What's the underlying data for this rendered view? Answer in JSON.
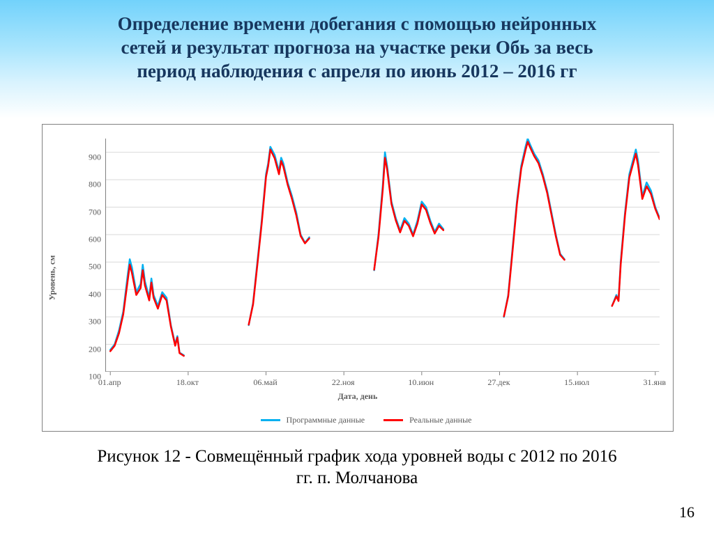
{
  "title_lines": [
    "Определение времени добегания с помощью нейронных",
    "сетей и результат прогноза на участке реки Обь за весь",
    "период наблюдения с  апреля по июнь 2012 – 2016 гг"
  ],
  "caption_lines": [
    "Рисунок 12 - Совмещённый график хода уровней воды с 2012 по 2016",
    "гг. п. Молчанова"
  ],
  "page_number": "16",
  "chart": {
    "type": "line",
    "y_axis": {
      "title": "Уровень, см",
      "min": 100,
      "max": 950,
      "ticks": [
        100,
        200,
        300,
        400,
        500,
        600,
        700,
        800,
        900
      ],
      "grid_color": "#d9d9d9",
      "label_color": "#595959",
      "label_fontsize": 12
    },
    "x_axis": {
      "title": "Дата, день",
      "min": 0,
      "max": 128,
      "ticks": [
        {
          "pos": 1,
          "label": "01.апр"
        },
        {
          "pos": 19,
          "label": "18.окт"
        },
        {
          "pos": 37,
          "label": "06.май"
        },
        {
          "pos": 55,
          "label": "22.ноя"
        },
        {
          "pos": 73,
          "label": "10.июн"
        },
        {
          "pos": 91,
          "label": "27.дек"
        },
        {
          "pos": 109,
          "label": "15.июл"
        },
        {
          "pos": 127,
          "label": "31.янв"
        }
      ],
      "tick_len": 5,
      "label_color": "#595959",
      "label_fontsize": 12
    },
    "legend": {
      "items": [
        {
          "label": "Программные данные",
          "color": "#00b0f0"
        },
        {
          "label": "Реальные данные",
          "color": "#ff0000"
        }
      ]
    },
    "series": [
      {
        "name": "program",
        "color": "#00b0f0",
        "width": 2.5,
        "segments": [
          [
            [
              1,
              180
            ],
            [
              2,
              200
            ],
            [
              3,
              250
            ],
            [
              4,
              320
            ],
            [
              5,
              450
            ],
            [
              5.5,
              510
            ],
            [
              6,
              480
            ],
            [
              7,
              390
            ],
            [
              8,
              420
            ],
            [
              8.5,
              490
            ],
            [
              9,
              430
            ],
            [
              10,
              370
            ],
            [
              10.5,
              440
            ],
            [
              11,
              380
            ],
            [
              12,
              340
            ],
            [
              13,
              390
            ],
            [
              14,
              370
            ],
            [
              15,
              270
            ],
            [
              16,
              200
            ],
            [
              16.5,
              230
            ],
            [
              17,
              170
            ],
            [
              18,
              160
            ]
          ],
          [
            [
              33,
              270
            ],
            [
              34,
              350
            ],
            [
              35,
              500
            ],
            [
              36,
              650
            ],
            [
              37,
              820
            ],
            [
              37.5,
              860
            ],
            [
              38,
              920
            ],
            [
              39,
              890
            ],
            [
              40,
              830
            ],
            [
              40.5,
              880
            ],
            [
              41,
              860
            ],
            [
              42,
              790
            ],
            [
              43,
              740
            ],
            [
              44,
              680
            ],
            [
              45,
              600
            ],
            [
              46,
              570
            ],
            [
              47,
              590
            ]
          ],
          [
            [
              62,
              470
            ],
            [
              63,
              600
            ],
            [
              64,
              780
            ],
            [
              64.5,
              900
            ],
            [
              65,
              850
            ],
            [
              66,
              720
            ],
            [
              67,
              660
            ],
            [
              68,
              615
            ],
            [
              69,
              660
            ],
            [
              70,
              640
            ],
            [
              71,
              600
            ],
            [
              72,
              650
            ],
            [
              73,
              720
            ],
            [
              74,
              700
            ],
            [
              75,
              650
            ],
            [
              76,
              610
            ],
            [
              77,
              640
            ],
            [
              78,
              620
            ]
          ],
          [
            [
              92,
              300
            ],
            [
              93,
              380
            ],
            [
              94,
              550
            ],
            [
              95,
              720
            ],
            [
              96,
              850
            ],
            [
              97,
              920
            ],
            [
              97.5,
              950
            ],
            [
              98,
              930
            ],
            [
              99,
              895
            ],
            [
              100,
              870
            ],
            [
              101,
              820
            ],
            [
              102,
              760
            ],
            [
              103,
              680
            ],
            [
              104,
              600
            ],
            [
              105,
              530
            ],
            [
              106,
              510
            ]
          ],
          [
            [
              117,
              340
            ],
            [
              118,
              380
            ],
            [
              118.5,
              360
            ],
            [
              119,
              500
            ],
            [
              120,
              680
            ],
            [
              121,
              820
            ],
            [
              122,
              880
            ],
            [
              122.5,
              910
            ],
            [
              123,
              870
            ],
            [
              124,
              740
            ],
            [
              125,
              790
            ],
            [
              126,
              760
            ],
            [
              127,
              700
            ],
            [
              128,
              660
            ]
          ]
        ]
      },
      {
        "name": "real",
        "color": "#ff0000",
        "width": 2.5,
        "segments": [
          [
            [
              1,
              175
            ],
            [
              2,
              195
            ],
            [
              3,
              240
            ],
            [
              4,
              310
            ],
            [
              5,
              430
            ],
            [
              5.5,
              490
            ],
            [
              6,
              460
            ],
            [
              7,
              380
            ],
            [
              8,
              405
            ],
            [
              8.5,
              470
            ],
            [
              9,
              415
            ],
            [
              10,
              360
            ],
            [
              10.5,
              425
            ],
            [
              11,
              370
            ],
            [
              12,
              330
            ],
            [
              13,
              380
            ],
            [
              14,
              360
            ],
            [
              15,
              265
            ],
            [
              16,
              195
            ],
            [
              16.5,
              225
            ],
            [
              17,
              168
            ],
            [
              18,
              158
            ]
          ],
          [
            [
              33,
              272
            ],
            [
              34,
              345
            ],
            [
              35,
              490
            ],
            [
              36,
              640
            ],
            [
              37,
              810
            ],
            [
              37.5,
              850
            ],
            [
              38,
              910
            ],
            [
              39,
              878
            ],
            [
              40,
              820
            ],
            [
              40.5,
              868
            ],
            [
              41,
              848
            ],
            [
              42,
              782
            ],
            [
              43,
              730
            ],
            [
              44,
              670
            ],
            [
              45,
              595
            ],
            [
              46,
              568
            ],
            [
              47,
              586
            ]
          ],
          [
            [
              62,
              472
            ],
            [
              63,
              590
            ],
            [
              64,
              765
            ],
            [
              64.5,
              880
            ],
            [
              65,
              838
            ],
            [
              66,
              712
            ],
            [
              67,
              652
            ],
            [
              68,
              608
            ],
            [
              69,
              650
            ],
            [
              70,
              632
            ],
            [
              71,
              594
            ],
            [
              72,
              640
            ],
            [
              73,
              710
            ],
            [
              74,
              690
            ],
            [
              75,
              642
            ],
            [
              76,
              604
            ],
            [
              77,
              632
            ],
            [
              78,
              616
            ]
          ],
          [
            [
              92,
              302
            ],
            [
              93,
              375
            ],
            [
              94,
              540
            ],
            [
              95,
              710
            ],
            [
              96,
              840
            ],
            [
              97,
              908
            ],
            [
              97.5,
              938
            ],
            [
              98,
              920
            ],
            [
              99,
              886
            ],
            [
              100,
              860
            ],
            [
              101,
              812
            ],
            [
              102,
              752
            ],
            [
              103,
              672
            ],
            [
              104,
              594
            ],
            [
              105,
              526
            ],
            [
              106,
              508
            ]
          ],
          [
            [
              117,
              340
            ],
            [
              118,
              375
            ],
            [
              118.5,
              358
            ],
            [
              119,
              490
            ],
            [
              120,
              670
            ],
            [
              121,
              808
            ],
            [
              122,
              866
            ],
            [
              122.5,
              895
            ],
            [
              123,
              854
            ],
            [
              124,
              730
            ],
            [
              125,
              776
            ],
            [
              126,
              748
            ],
            [
              127,
              694
            ],
            [
              128,
              656
            ]
          ]
        ]
      }
    ],
    "background_color": "#ffffff",
    "border_color": "#808080"
  },
  "title_color": "#17375e",
  "title_fontsize": 27
}
